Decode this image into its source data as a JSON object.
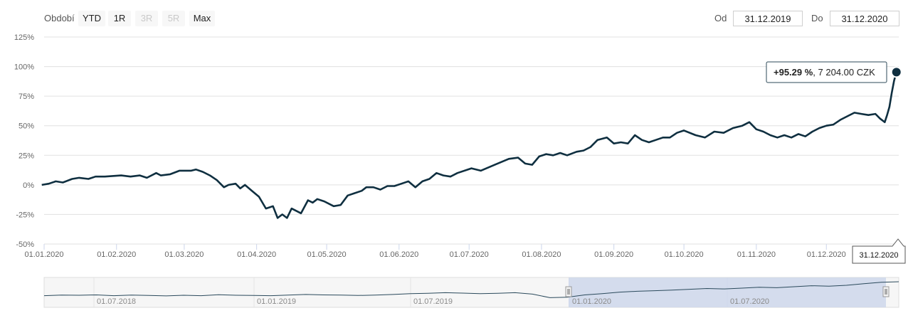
{
  "toolbar": {
    "range_label": "Období",
    "buttons": [
      {
        "label": "YTD",
        "enabled": true
      },
      {
        "label": "1R",
        "enabled": true
      },
      {
        "label": "3R",
        "enabled": false
      },
      {
        "label": "5R",
        "enabled": false
      },
      {
        "label": "Max",
        "enabled": true
      }
    ],
    "from_label": "Od",
    "from_value": "31.12.2019",
    "to_label": "Do",
    "to_value": "31.12.2020"
  },
  "tooltip": {
    "percent": "+95.29 %",
    "value": ", 7 204.00 CZK",
    "date": "31.12.2020"
  },
  "colors": {
    "line": "#0f2f40",
    "navigator_fill": "#ccd6eb",
    "grid": "#e0e0e0"
  },
  "navigator": {
    "labels": [
      "01.07.2018",
      "01.01.2019",
      "01.07.2019",
      "01.01.2020",
      "01.07.2020"
    ]
  },
  "chart_data": {
    "type": "line",
    "ylim": [
      -50,
      125
    ],
    "y_ticks": [
      "125%",
      "100%",
      "75%",
      "50%",
      "25%",
      "0%",
      "-25%",
      "-50%"
    ],
    "x_ticks": [
      "01.01.2020",
      "01.02.2020",
      "01.03.2020",
      "01.04.2020",
      "01.05.2020",
      "01.06.2020",
      "01.07.2020",
      "01.08.2020",
      "01.09.2020",
      "01.10.2020",
      "01.11.2020",
      "01.12.2020"
    ],
    "series": [
      {
        "values": [
          [
            "2019-12-31",
            0
          ],
          [
            "2020-01-03",
            1
          ],
          [
            "2020-01-06",
            3
          ],
          [
            "2020-01-09",
            2
          ],
          [
            "2020-01-13",
            5
          ],
          [
            "2020-01-16",
            6
          ],
          [
            "2020-01-20",
            5
          ],
          [
            "2020-01-23",
            7
          ],
          [
            "2020-01-27",
            7
          ],
          [
            "2020-02-03",
            8
          ],
          [
            "2020-02-07",
            7
          ],
          [
            "2020-02-11",
            8
          ],
          [
            "2020-02-14",
            6
          ],
          [
            "2020-02-18",
            10
          ],
          [
            "2020-02-20",
            8
          ],
          [
            "2020-02-24",
            9
          ],
          [
            "2020-02-28",
            12
          ],
          [
            "2020-03-04",
            12
          ],
          [
            "2020-03-06",
            13
          ],
          [
            "2020-03-09",
            11
          ],
          [
            "2020-03-12",
            8
          ],
          [
            "2020-03-15",
            4
          ],
          [
            "2020-03-18",
            -2
          ],
          [
            "2020-03-20",
            0
          ],
          [
            "2020-03-23",
            1
          ],
          [
            "2020-03-25",
            -3
          ],
          [
            "2020-03-27",
            0
          ],
          [
            "2020-03-30",
            -5
          ],
          [
            "2020-04-02",
            -10
          ],
          [
            "2020-04-05",
            -20
          ],
          [
            "2020-04-08",
            -18
          ],
          [
            "2020-04-10",
            -28
          ],
          [
            "2020-04-12",
            -25
          ],
          [
            "2020-04-14",
            -28
          ],
          [
            "2020-04-16",
            -20
          ],
          [
            "2020-04-18",
            -22
          ],
          [
            "2020-04-20",
            -24
          ],
          [
            "2020-04-23",
            -13
          ],
          [
            "2020-04-25",
            -15
          ],
          [
            "2020-04-27",
            -12
          ],
          [
            "2020-04-30",
            -14
          ],
          [
            "2020-05-04",
            -18
          ],
          [
            "2020-05-07",
            -17
          ],
          [
            "2020-05-10",
            -9
          ],
          [
            "2020-05-13",
            -7
          ],
          [
            "2020-05-16",
            -5
          ],
          [
            "2020-05-18",
            -2
          ],
          [
            "2020-05-21",
            -2
          ],
          [
            "2020-05-24",
            -4
          ],
          [
            "2020-05-27",
            -1
          ],
          [
            "2020-05-30",
            -1
          ],
          [
            "2020-06-02",
            1
          ],
          [
            "2020-06-05",
            3
          ],
          [
            "2020-06-08",
            -2
          ],
          [
            "2020-06-11",
            3
          ],
          [
            "2020-06-14",
            5
          ],
          [
            "2020-06-17",
            10
          ],
          [
            "2020-06-20",
            8
          ],
          [
            "2020-06-23",
            7
          ],
          [
            "2020-06-26",
            10
          ],
          [
            "2020-07-02",
            14
          ],
          [
            "2020-07-06",
            12
          ],
          [
            "2020-07-12",
            17
          ],
          [
            "2020-07-18",
            22
          ],
          [
            "2020-07-22",
            23
          ],
          [
            "2020-07-25",
            18
          ],
          [
            "2020-07-28",
            17
          ],
          [
            "2020-07-31",
            24
          ],
          [
            "2020-08-03",
            26
          ],
          [
            "2020-08-06",
            25
          ],
          [
            "2020-08-09",
            27
          ],
          [
            "2020-08-12",
            25
          ],
          [
            "2020-08-16",
            28
          ],
          [
            "2020-08-19",
            29
          ],
          [
            "2020-08-22",
            32
          ],
          [
            "2020-08-25",
            38
          ],
          [
            "2020-08-29",
            40
          ],
          [
            "2020-09-01",
            35
          ],
          [
            "2020-09-04",
            36
          ],
          [
            "2020-09-07",
            35
          ],
          [
            "2020-09-10",
            42
          ],
          [
            "2020-09-13",
            38
          ],
          [
            "2020-09-16",
            36
          ],
          [
            "2020-09-19",
            38
          ],
          [
            "2020-09-22",
            40
          ],
          [
            "2020-09-25",
            40
          ],
          [
            "2020-09-28",
            44
          ],
          [
            "2020-10-01",
            46
          ],
          [
            "2020-10-06",
            42
          ],
          [
            "2020-10-10",
            40
          ],
          [
            "2020-10-14",
            45
          ],
          [
            "2020-10-18",
            44
          ],
          [
            "2020-10-22",
            48
          ],
          [
            "2020-10-26",
            50
          ],
          [
            "2020-10-29",
            53
          ],
          [
            "2020-11-01",
            47
          ],
          [
            "2020-11-04",
            45
          ],
          [
            "2020-11-07",
            42
          ],
          [
            "2020-11-10",
            40
          ],
          [
            "2020-11-13",
            42
          ],
          [
            "2020-11-16",
            40
          ],
          [
            "2020-11-19",
            43
          ],
          [
            "2020-11-22",
            41
          ],
          [
            "2020-11-25",
            45
          ],
          [
            "2020-11-28",
            48
          ],
          [
            "2020-12-01",
            50
          ],
          [
            "2020-12-04",
            51
          ],
          [
            "2020-12-07",
            55
          ],
          [
            "2020-12-10",
            58
          ],
          [
            "2020-12-13",
            61
          ],
          [
            "2020-12-16",
            60
          ],
          [
            "2020-12-19",
            59
          ],
          [
            "2020-12-22",
            60
          ],
          [
            "2020-12-24",
            56
          ],
          [
            "2020-12-26",
            53
          ],
          [
            "2020-12-27",
            59
          ],
          [
            "2020-12-28",
            66
          ],
          [
            "2020-12-29",
            78
          ],
          [
            "2020-12-30",
            88
          ],
          [
            "2020-12-31",
            95.29
          ]
        ]
      }
    ]
  }
}
